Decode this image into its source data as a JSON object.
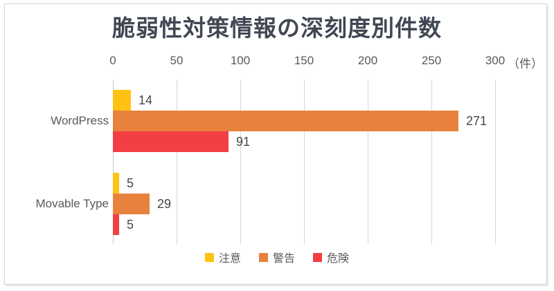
{
  "chart_data": {
    "type": "bar",
    "orientation": "horizontal",
    "title": "脆弱性対策情報の深刻度別件数",
    "categories": [
      "WordPress",
      "Movable Type"
    ],
    "series": [
      {
        "name": "注意",
        "color": "#FFC213",
        "values": [
          14,
          5
        ]
      },
      {
        "name": "警告",
        "color": "#E8813C",
        "values": [
          271,
          29
        ]
      },
      {
        "name": "危険",
        "color": "#F23F44",
        "values": [
          91,
          5
        ]
      }
    ],
    "x_ticks": [
      0,
      50,
      100,
      150,
      200,
      250,
      300
    ],
    "xlim": [
      0,
      300
    ],
    "unit_label": "（件）",
    "grid": true,
    "legend_position": "bottom",
    "value_labels_shown": true
  },
  "colors": {
    "title_text": "#414753",
    "axis_text": "#595959",
    "value_text": "#474747",
    "gridline": "#d6d6d6",
    "frame_border": "#d2d2d2",
    "background": "#ffffff"
  }
}
